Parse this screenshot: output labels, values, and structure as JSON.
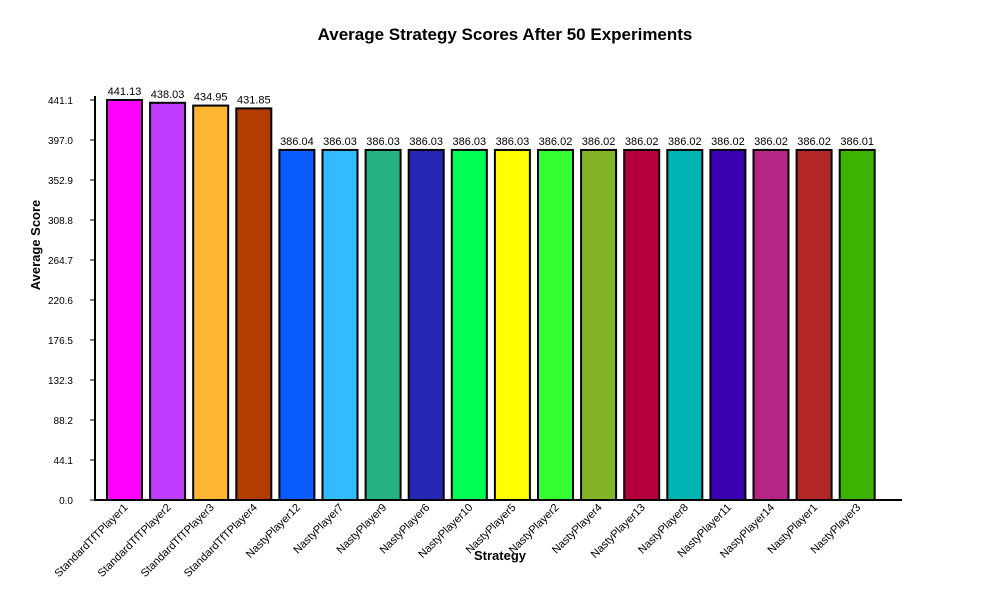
{
  "chart_data": {
    "type": "bar",
    "title": "Average Strategy Scores After 50 Experiments",
    "xlabel": "Strategy",
    "ylabel": "Average Score",
    "ylim": [
      0,
      441.1
    ],
    "yticks": [
      "0.0",
      "44.1",
      "88.2",
      "132.3",
      "176.5",
      "220.6",
      "264.7",
      "308.8",
      "352.9",
      "397.0",
      "441.1"
    ],
    "categories": [
      "StandardTfTPlayer1",
      "StandardTfTPlayer2",
      "StandardTfTPlayer3",
      "StandardTfTPlayer4",
      "NastyPlayer12",
      "NastyPlayer7",
      "NastyPlayer9",
      "NastyPlayer6",
      "NastyPlayer10",
      "NastyPlayer5",
      "NastyPlayer2",
      "NastyPlayer4",
      "NastyPlayer13",
      "NastyPlayer8",
      "NastyPlayer11",
      "NastyPlayer14",
      "NastyPlayer1",
      "NastyPlayer3"
    ],
    "values": [
      441.13,
      438.03,
      434.95,
      431.85,
      386.04,
      386.03,
      386.03,
      386.03,
      386.03,
      386.03,
      386.02,
      386.02,
      386.02,
      386.02,
      386.02,
      386.02,
      386.02,
      386.01
    ],
    "value_labels": [
      "441.13",
      "438.03",
      "434.95",
      "431.85",
      "386.04",
      "386.03",
      "386.03",
      "386.03",
      "386.03",
      "386.03",
      "386.02",
      "386.02",
      "386.02",
      "386.02",
      "386.02",
      "386.02",
      "386.02",
      "386.01"
    ],
    "colors": [
      "#ff00ff",
      "#c03cff",
      "#ffb733",
      "#b33c00",
      "#0a5cff",
      "#33bbff",
      "#26b383",
      "#2626b3",
      "#00ff55",
      "#ffff00",
      "#33ff33",
      "#83b326",
      "#b3003c",
      "#00b3b3",
      "#3c00b3",
      "#b32683",
      "#b32626",
      "#3cb300"
    ],
    "grid": false,
    "legend": "none"
  }
}
